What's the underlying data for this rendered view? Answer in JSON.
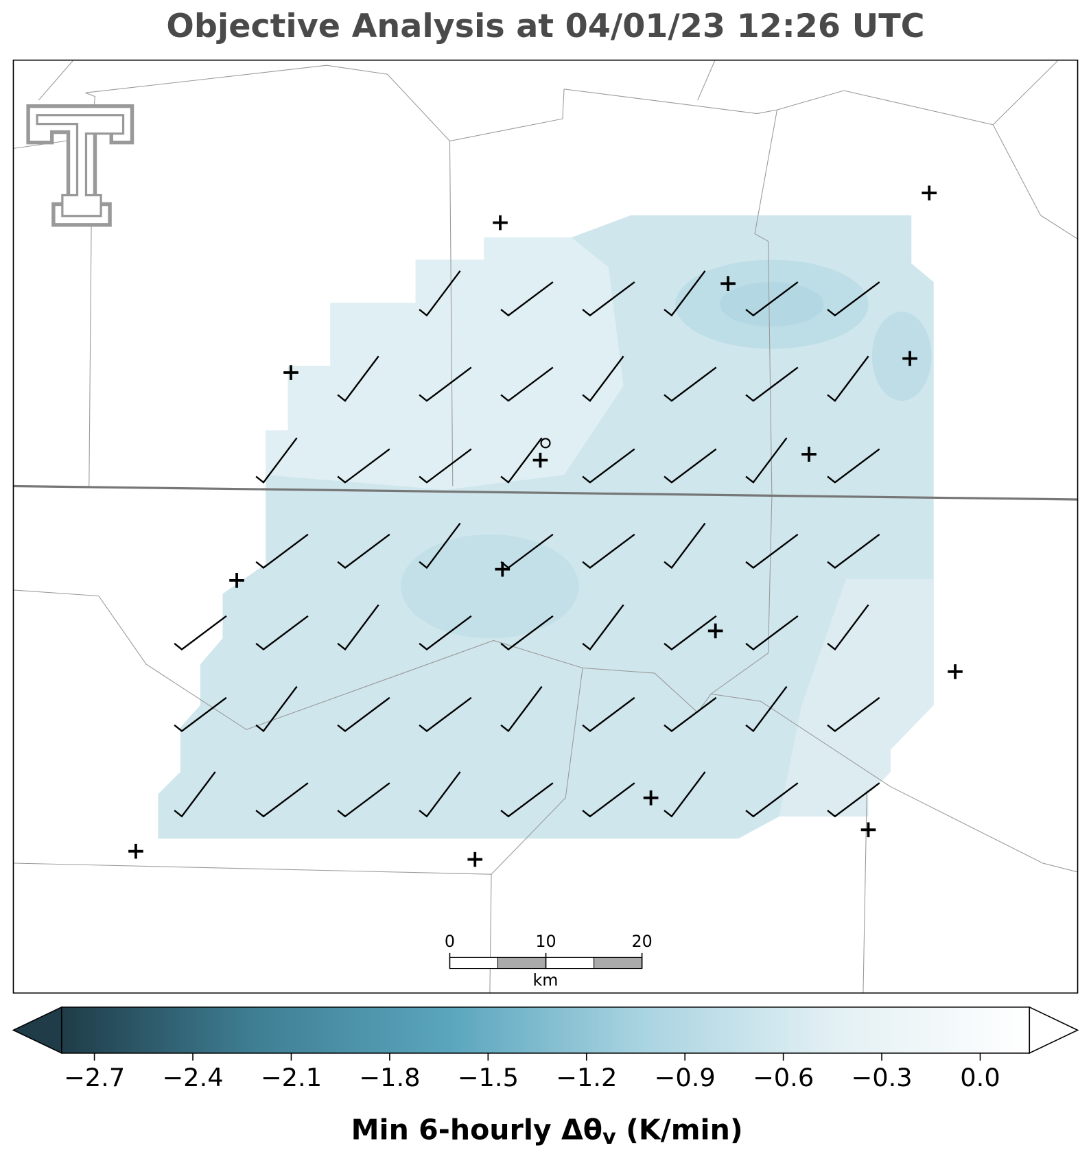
{
  "chart_data": {
    "type": "map",
    "title": "Objective Analysis at 04/01/23 12:26 UTC",
    "colorbar": {
      "lim": [
        -2.8,
        0.15
      ],
      "ticks": [
        {
          "value": -2.7,
          "label": "−2.7"
        },
        {
          "value": -2.4,
          "label": "−2.4"
        },
        {
          "value": -2.1,
          "label": "−2.1"
        },
        {
          "value": -1.8,
          "label": "−1.8"
        },
        {
          "value": -1.5,
          "label": "−1.5"
        },
        {
          "value": -1.2,
          "label": "−1.2"
        },
        {
          "value": -0.9,
          "label": "−0.9"
        },
        {
          "value": -0.6,
          "label": "−0.6"
        },
        {
          "value": -0.3,
          "label": "−0.3"
        },
        {
          "value": 0.0,
          "label": "0.0"
        }
      ],
      "colors": [
        "#1f3c48",
        "#3f7f94",
        "#5aa5bd",
        "#a9d4e1",
        "#e3f0f4",
        "#ffffff"
      ],
      "label": [
        "Min 6-hourly Δθ",
        "v",
        " (K/min)"
      ]
    },
    "scale_bar": {
      "ticks": [
        0,
        10,
        20
      ],
      "unit": "km"
    }
  }
}
